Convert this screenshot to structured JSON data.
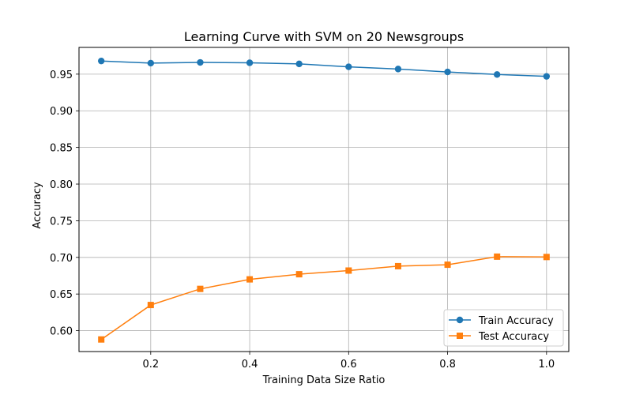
{
  "chart_data": {
    "type": "line",
    "title": "Learning Curve with SVM on 20 Newsgroups",
    "xlabel": "Training Data Size Ratio",
    "ylabel": "Accuracy",
    "xlim": [
      0.055,
      1.045
    ],
    "ylim": [
      0.5715,
      0.9865
    ],
    "xticks": [
      0.2,
      0.4,
      0.6,
      0.8,
      1.0
    ],
    "xtick_labels": [
      "0.2",
      "0.4",
      "0.6",
      "0.8",
      "1.0"
    ],
    "yticks": [
      0.6,
      0.65,
      0.7,
      0.75,
      0.8,
      0.85,
      0.9,
      0.95
    ],
    "ytick_labels": [
      "0.60",
      "0.65",
      "0.70",
      "0.75",
      "0.80",
      "0.85",
      "0.90",
      "0.95"
    ],
    "grid": true,
    "legend_position": "bottom-right",
    "x": [
      0.1,
      0.2,
      0.3,
      0.4,
      0.5,
      0.6,
      0.7,
      0.8,
      0.9,
      1.0
    ],
    "series": [
      {
        "name": "Train Accuracy",
        "color": "#1f77b4",
        "marker": "circle",
        "values": [
          0.968,
          0.965,
          0.966,
          0.9655,
          0.964,
          0.96,
          0.957,
          0.953,
          0.9495,
          0.947
        ]
      },
      {
        "name": "Test Accuracy",
        "color": "#ff7f0e",
        "marker": "square",
        "values": [
          0.588,
          0.635,
          0.657,
          0.67,
          0.677,
          0.682,
          0.688,
          0.69,
          0.701,
          0.7005
        ]
      }
    ]
  }
}
